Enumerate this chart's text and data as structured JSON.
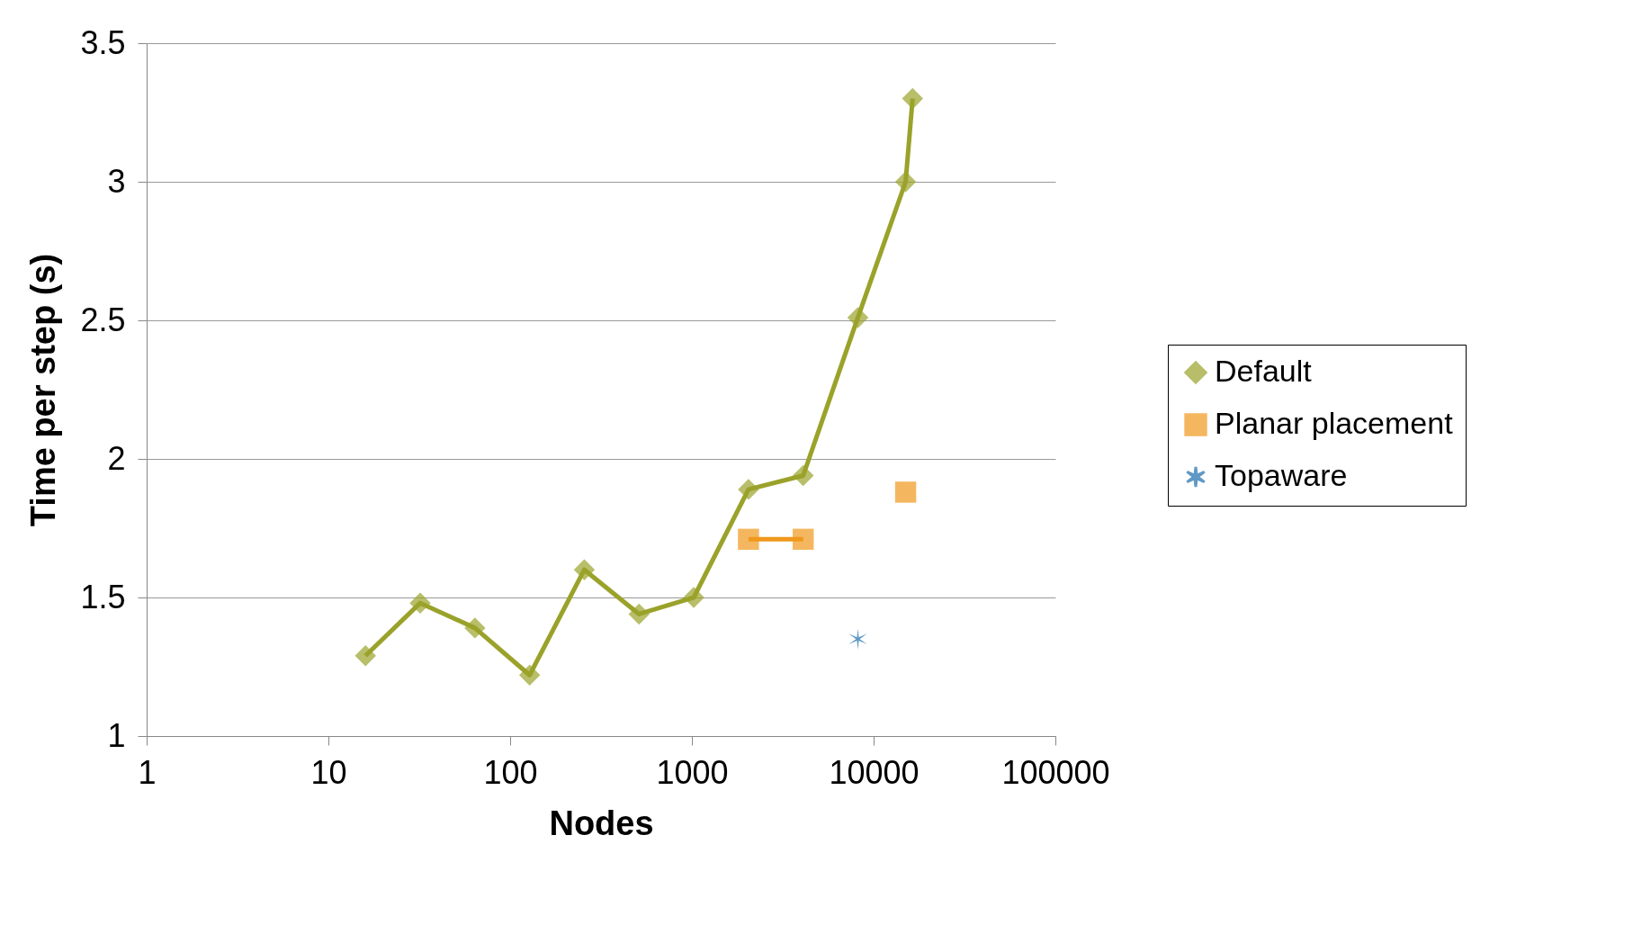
{
  "chart_data": {
    "type": "line",
    "xlabel": "Nodes",
    "ylabel": "Time per step (s)",
    "log": "x",
    "xlim": [
      1,
      100000
    ],
    "xticks": [
      1,
      10,
      100,
      1000,
      10000,
      100000
    ],
    "ylim": [
      1,
      3.5
    ],
    "yticks": [
      1,
      1.5,
      2,
      2.5,
      3,
      3.5
    ],
    "grid": "y",
    "legend": "right",
    "line_style": "solid",
    "series": [
      {
        "name": "Default",
        "color": "#9aa22a",
        "marker": "diamond",
        "x": [
          16,
          32,
          64,
          128,
          256,
          512,
          1024,
          2048,
          4096,
          8192,
          15000,
          16384
        ],
        "values": [
          1.29,
          1.48,
          1.39,
          1.22,
          1.6,
          1.44,
          1.5,
          1.89,
          1.94,
          2.51,
          3.0,
          3.3
        ]
      },
      {
        "name": "Planar placement",
        "color": "#f0981c",
        "marker": "square",
        "x": [
          2048,
          4096,
          8192,
          15000
        ],
        "values": [
          1.71,
          1.71,
          null,
          1.88
        ]
      },
      {
        "name": "Topaware",
        "color": "#1f6fae",
        "marker": "cross",
        "x": [
          8192
        ],
        "values": [
          1.35
        ]
      }
    ]
  }
}
